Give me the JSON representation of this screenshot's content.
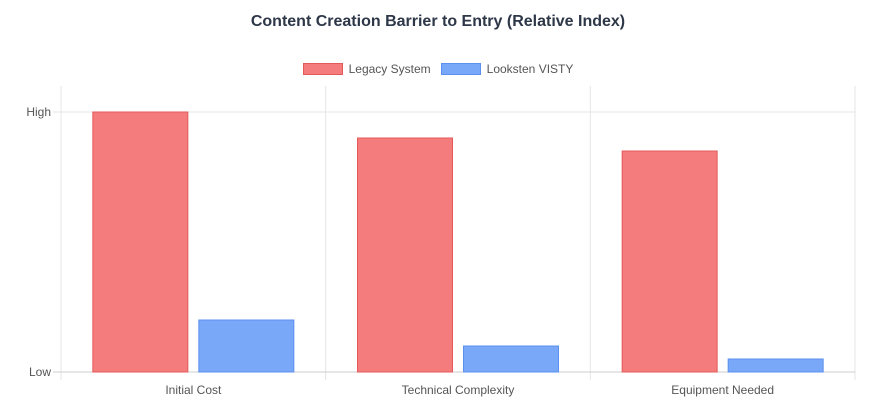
{
  "chart_data": {
    "type": "bar",
    "title": "Content Creation Barrier to Entry (Relative Index)",
    "categories": [
      "Initial Cost",
      "Technical Complexity",
      "Equipment Needed"
    ],
    "series": [
      {
        "name": "Legacy System",
        "values": [
          10,
          9,
          8.5
        ],
        "color": "#f47c7c",
        "border": "#e45a5a"
      },
      {
        "name": "Looksten VISTY",
        "values": [
          2,
          1,
          0.5
        ],
        "color": "#78a8f7",
        "border": "#5b8ff0"
      }
    ],
    "ylim": [
      0,
      10
    ],
    "yticks": [
      {
        "value": 0,
        "label": "Low"
      },
      {
        "value": 10,
        "label": "High"
      }
    ],
    "grid": true,
    "legend_position": "top"
  }
}
